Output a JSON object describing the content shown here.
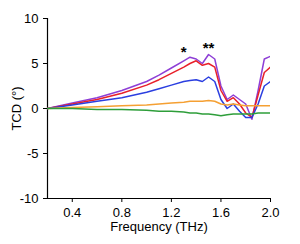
{
  "chart_data": {
    "type": "line",
    "x_label": "Frequency (THz)",
    "y_label": "TCD (°)",
    "x": [
      0.2,
      0.4,
      0.6,
      0.8,
      1.0,
      1.1,
      1.2,
      1.3,
      1.35,
      1.4,
      1.45,
      1.5,
      1.55,
      1.6,
      1.65,
      1.7,
      1.75,
      1.8,
      1.85,
      1.9,
      1.95,
      2.0
    ],
    "series": [
      {
        "color": "#8e3fd6",
        "values": [
          0,
          0.6,
          1.2,
          2.0,
          3.0,
          3.7,
          4.5,
          5.3,
          5.7,
          5.5,
          5.0,
          6.0,
          5.5,
          2.5,
          1.0,
          1.5,
          1.0,
          0.5,
          -1.2,
          2.0,
          5.5,
          5.8
        ]
      },
      {
        "color": "#e8202a",
        "values": [
          0,
          0.5,
          1.0,
          1.7,
          2.6,
          3.2,
          3.9,
          4.6,
          5.0,
          5.3,
          4.8,
          5.0,
          4.6,
          2.0,
          0.8,
          1.2,
          0.5,
          -0.5,
          -1.0,
          1.5,
          4.0,
          4.6
        ]
      },
      {
        "color": "#2b3fe0",
        "values": [
          0,
          0.4,
          0.8,
          1.2,
          1.8,
          2.2,
          2.6,
          3.0,
          3.1,
          3.2,
          3.0,
          3.5,
          3.0,
          1.0,
          0.0,
          0.5,
          -0.3,
          -1.0,
          -1.0,
          0.5,
          2.5,
          3.0
        ]
      },
      {
        "color": "#f5a033",
        "values": [
          0,
          0.1,
          0.2,
          0.3,
          0.4,
          0.5,
          0.6,
          0.7,
          0.8,
          0.8,
          0.8,
          0.9,
          0.8,
          0.5,
          0.4,
          0.5,
          0.4,
          0.3,
          0.3,
          0.3,
          0.3,
          0.3
        ]
      },
      {
        "color": "#2e9e3a",
        "values": [
          0,
          0.0,
          -0.1,
          -0.1,
          -0.2,
          -0.3,
          -0.3,
          -0.4,
          -0.5,
          -0.5,
          -0.6,
          -0.6,
          -0.7,
          -0.8,
          -0.7,
          -0.6,
          -0.6,
          -0.6,
          -0.6,
          -0.5,
          -0.5,
          -0.5
        ]
      }
    ],
    "annotations": [
      {
        "text": "*",
        "x": 1.3,
        "y": 6.3
      },
      {
        "text": "**",
        "x": 1.5,
        "y": 6.7
      }
    ],
    "xlim": [
      0.2,
      2.0
    ],
    "xticks": [
      {
        "value": 0.4,
        "label": "0.4"
      },
      {
        "value": 0.8,
        "label": "0.8"
      },
      {
        "value": 1.2,
        "label": "1.2"
      },
      {
        "value": 1.6,
        "label": "1.6"
      },
      {
        "value": 2.0,
        "label": "2.0"
      }
    ],
    "ylim": [
      -10,
      10
    ],
    "yticks": [
      -10,
      -5,
      0,
      5,
      10
    ],
    "grid": false
  }
}
